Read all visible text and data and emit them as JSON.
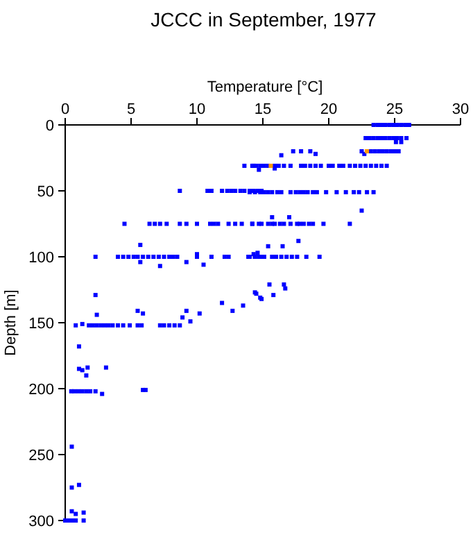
{
  "chart_data": {
    "type": "scatter",
    "title": "JCCC in September, 1977",
    "xlabel": "Temperature [°C]",
    "ylabel": "Depth [m]",
    "xlim": [
      0,
      30
    ],
    "xticks": [
      0,
      5,
      10,
      15,
      20,
      25,
      30
    ],
    "ylim": [
      300,
      0
    ],
    "yticks": [
      0,
      50,
      100,
      150,
      200,
      250,
      300
    ],
    "marker": "square",
    "series": [
      {
        "color": "#0000ff",
        "x": [
          23.4,
          23.7,
          24.0,
          24.3,
          24.6,
          24.9,
          25.2,
          25.5,
          25.8,
          26.1,
          22.8,
          23.1,
          23.4,
          23.7,
          24.0,
          24.3,
          24.6,
          24.9,
          25.2,
          25.5,
          25.9,
          25.1,
          25.5,
          17.3,
          17.9,
          18.6,
          22.5,
          23.2,
          23.5,
          23.8,
          24.1,
          24.4,
          24.7,
          25.0,
          25.3,
          19.0,
          22.7,
          16.4,
          13.6,
          14.3,
          14.8,
          14.2,
          14.5,
          15.1,
          15.4,
          15.9,
          16.2,
          16.6,
          17.1,
          17.9,
          18.2,
          18.6,
          19.0,
          19.4,
          20.0,
          20.3,
          20.8,
          21.1,
          21.6,
          22.0,
          22.4,
          22.8,
          23.2,
          23.6,
          24.0,
          24.4,
          14.7,
          15.9,
          8.7,
          10.8,
          11.1,
          11.9,
          12.3,
          12.6,
          12.9,
          13.3,
          13.6,
          14.0,
          14.3,
          14.6,
          14.9,
          14.0,
          14.4,
          14.8,
          15.1,
          15.4,
          15.7,
          16.1,
          16.4,
          17.1,
          17.5,
          17.8,
          18.1,
          18.4,
          18.8,
          19.1,
          19.8,
          20.6,
          21.3,
          21.9,
          22.3,
          22.9,
          23.4,
          4.5,
          6.4,
          6.8,
          7.2,
          7.7,
          8.7,
          9.2,
          10.0,
          11.0,
          11.3,
          11.6,
          12.4,
          12.9,
          13.4,
          14.2,
          14.9,
          14.2,
          14.7,
          15.4,
          15.7,
          15.9,
          16.3,
          16.6,
          17.1,
          17.6,
          17.8,
          18.1,
          18.5,
          18.8,
          19.6,
          21.6,
          15.7,
          17.0,
          22.5,
          2.3,
          4.0,
          4.4,
          4.8,
          5.2,
          5.5,
          5.9,
          6.3,
          6.7,
          7.1,
          7.5,
          7.9,
          8.2,
          8.5,
          10.0,
          11.1,
          12.1,
          12.4,
          13.9,
          14.4,
          14.9,
          14.0,
          14.4,
          14.7,
          15.1,
          15.7,
          16.0,
          16.4,
          16.8,
          17.2,
          17.6,
          18.3,
          19.3,
          5.7,
          5.7,
          7.2,
          9.2,
          10.0,
          10.5,
          14.6,
          17.7,
          15.4,
          16.5,
          14.3,
          2.3,
          2.4,
          5.5,
          5.9,
          8.9,
          9.2,
          10.2,
          11.9,
          12.7,
          13.5,
          14.5,
          14.9,
          15.5,
          16.6,
          16.7,
          14.4,
          14.8,
          15.8,
          0.8,
          1.3,
          1.8,
          2.1,
          2.4,
          2.7,
          3.0,
          3.3,
          3.6,
          4.0,
          4.4,
          4.9,
          5.5,
          5.8,
          7.2,
          7.5,
          7.9,
          8.3,
          8.7,
          9.5,
          1.05,
          1.05,
          1.3,
          1.7,
          3.1,
          1.6,
          0.46,
          0.7,
          1.0,
          1.3,
          1.6,
          1.9,
          2.3,
          2.8,
          5.9,
          6.1,
          0.5,
          0.5,
          1.05,
          0.0,
          0.2,
          0.4,
          0.6,
          0.8,
          0.5,
          0.8,
          1.4,
          1.4
        ],
        "values": [
          0,
          0,
          0,
          0,
          0,
          0,
          0,
          0,
          0,
          0,
          10,
          10,
          10,
          10,
          10,
          10,
          10,
          10,
          10,
          10,
          10,
          13,
          13,
          20,
          20,
          20,
          20,
          20,
          20,
          20,
          20,
          20,
          20,
          20,
          20,
          22,
          22,
          23,
          31,
          31,
          31,
          31,
          31,
          31,
          31,
          31,
          31,
          31,
          31,
          31,
          31,
          31,
          31,
          31,
          31,
          31,
          31,
          31,
          31,
          31,
          31,
          31,
          31,
          31,
          31,
          31,
          34,
          33,
          50,
          50,
          50,
          50,
          50,
          50,
          50,
          50,
          50,
          50,
          50,
          50,
          50,
          51,
          51,
          51,
          51,
          51,
          51,
          51,
          51,
          51,
          51,
          51,
          51,
          51,
          51,
          51,
          51,
          51,
          51,
          51,
          51,
          51,
          51,
          75,
          75,
          75,
          75,
          75,
          75,
          75,
          75,
          75,
          75,
          75,
          75,
          75,
          75,
          75,
          75,
          75,
          75,
          75,
          75,
          75,
          75,
          75,
          75,
          75,
          75,
          75,
          75,
          75,
          75,
          75,
          70,
          70,
          65,
          100,
          100,
          100,
          100,
          100,
          100,
          100,
          100,
          100,
          100,
          100,
          100,
          100,
          100,
          100,
          100,
          100,
          100,
          100,
          100,
          100,
          100,
          100,
          100,
          100,
          100,
          100,
          100,
          100,
          100,
          100,
          100,
          100,
          91,
          104,
          107,
          104,
          98,
          106,
          97,
          88,
          92,
          92,
          98,
          129,
          144,
          141,
          143,
          146,
          141,
          143,
          135,
          141,
          137,
          128,
          132,
          121,
          121,
          124,
          127,
          131,
          129,
          152,
          151,
          152,
          152,
          152,
          152,
          152,
          152,
          152,
          152,
          152,
          152,
          152,
          152,
          152,
          152,
          152,
          152,
          152,
          149,
          168,
          185,
          186,
          184,
          184,
          190,
          202,
          202,
          202,
          202,
          202,
          202,
          202,
          204,
          201,
          201,
          244,
          275,
          273,
          300,
          300,
          300,
          300,
          300,
          293,
          295,
          294,
          300
        ]
      },
      {
        "color": "#ff9900",
        "x": [
          22.9,
          15.6
        ],
        "values": [
          20,
          31
        ]
      }
    ]
  }
}
